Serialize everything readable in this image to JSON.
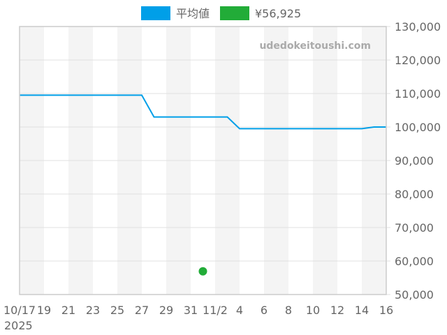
{
  "chart_data": {
    "type": "line",
    "title": "",
    "watermark": "udedokeitoushi.com",
    "xlabel": "",
    "ylabel": "",
    "x_range": [
      "2025-10-17",
      "2025-11-16"
    ],
    "x_tick_labels": [
      "10/17",
      "19",
      "21",
      "23",
      "25",
      "27",
      "29",
      "31",
      "11/2",
      "4",
      "6",
      "8",
      "10",
      "12",
      "14",
      "16"
    ],
    "x_year_label": "2025",
    "ylim": [
      50000,
      130000
    ],
    "y_tick_labels": [
      "50,000",
      "60,000",
      "70,000",
      "80,000",
      "90,000",
      "100,000",
      "110,000",
      "120,000",
      "130,000"
    ],
    "y_axis_position": "right",
    "grid": true,
    "legend_position": "top",
    "series": [
      {
        "name": "平均値",
        "type": "line",
        "color": "#009fe8",
        "points": [
          [
            "2025-10-17",
            109500
          ],
          [
            "2025-10-27",
            109500
          ],
          [
            "2025-10-28",
            103000
          ],
          [
            "2025-11-03",
            103000
          ],
          [
            "2025-11-04",
            99500
          ],
          [
            "2025-11-14",
            99500
          ],
          [
            "2025-11-15",
            100000
          ],
          [
            "2025-11-16",
            100000
          ]
        ]
      },
      {
        "name": "¥56,925",
        "type": "scatter",
        "color": "#22ac38",
        "points": [
          [
            "2025-11-01",
            56925
          ]
        ]
      }
    ]
  }
}
